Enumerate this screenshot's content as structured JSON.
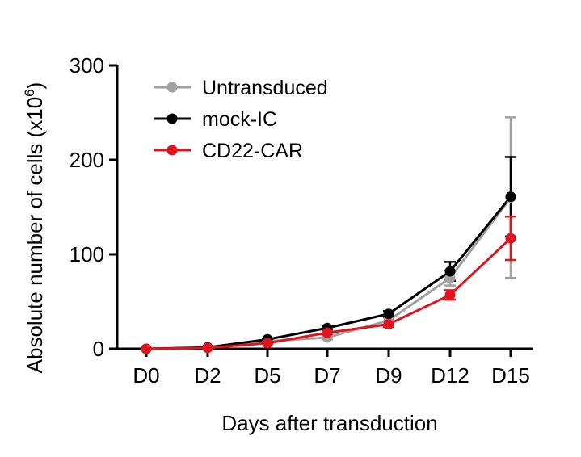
{
  "chart_data": {
    "type": "line",
    "title": "",
    "xlabel": "Days after transduction",
    "ylabel": "Absolute number of cells (x10",
    "ylabel_superscript": "6",
    "ylabel_close": ")",
    "categories": [
      "D0",
      "D2",
      "D5",
      "D7",
      "D9",
      "D12",
      "D15"
    ],
    "ylim": [
      0,
      300
    ],
    "yticks": [
      "0",
      "100",
      "200",
      "300"
    ],
    "grid": false,
    "legend_position": "top-left",
    "series": [
      {
        "name": "Untransduced",
        "color": "#a0a0a0",
        "values": [
          0,
          1,
          8,
          12,
          30,
          75,
          160
        ],
        "errors": [
          0,
          0,
          1,
          2,
          3,
          8,
          85
        ]
      },
      {
        "name": "mock-IC",
        "color": "#000000",
        "values": [
          0,
          1.5,
          10,
          22,
          37,
          82,
          161
        ],
        "errors": [
          0,
          0,
          1,
          2,
          3,
          10,
          42
        ]
      },
      {
        "name": "CD22-CAR",
        "color": "#e0141e",
        "values": [
          0,
          1,
          6,
          17,
          26,
          57,
          117
        ],
        "errors": [
          0,
          0,
          1,
          2,
          3,
          5,
          23
        ]
      }
    ]
  }
}
